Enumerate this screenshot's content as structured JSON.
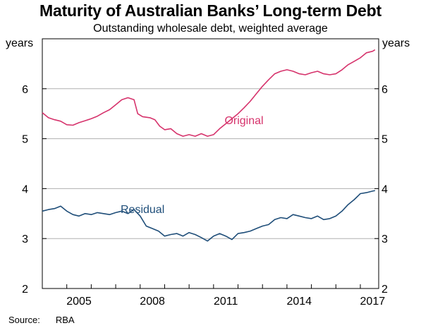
{
  "source": {
    "label": "Source:",
    "value": "RBA"
  },
  "colors": {
    "original": "#d6336c",
    "residual": "#1f4e79",
    "grid": "#b0b0b0",
    "axis": "#000000"
  },
  "chart_data": {
    "type": "line",
    "title": "Maturity of Australian Banks’ Long-term Debt",
    "subtitle": "Outstanding wholesale debt, weighted average",
    "ylabel_left": "years",
    "ylabel_right": "years",
    "xlim": [
      2004.0,
      2017.75
    ],
    "ylim": [
      2,
      7
    ],
    "yticks": [
      2,
      3,
      4,
      5,
      6
    ],
    "xticks": [
      2005,
      2008,
      2011,
      2014,
      2017
    ],
    "grid": true,
    "series": [
      {
        "name": "Original",
        "color": "#d6336c",
        "points": [
          [
            2004.0,
            5.52
          ],
          [
            2004.25,
            5.42
          ],
          [
            2004.5,
            5.38
          ],
          [
            2004.75,
            5.35
          ],
          [
            2005.0,
            5.28
          ],
          [
            2005.25,
            5.27
          ],
          [
            2005.5,
            5.32
          ],
          [
            2005.75,
            5.36
          ],
          [
            2006.0,
            5.4
          ],
          [
            2006.25,
            5.45
          ],
          [
            2006.5,
            5.52
          ],
          [
            2006.75,
            5.58
          ],
          [
            2007.0,
            5.68
          ],
          [
            2007.25,
            5.78
          ],
          [
            2007.5,
            5.82
          ],
          [
            2007.75,
            5.78
          ],
          [
            2007.9,
            5.5
          ],
          [
            2008.1,
            5.44
          ],
          [
            2008.4,
            5.42
          ],
          [
            2008.6,
            5.38
          ],
          [
            2008.8,
            5.25
          ],
          [
            2009.0,
            5.18
          ],
          [
            2009.25,
            5.2
          ],
          [
            2009.5,
            5.1
          ],
          [
            2009.75,
            5.05
          ],
          [
            2010.0,
            5.08
          ],
          [
            2010.25,
            5.05
          ],
          [
            2010.5,
            5.1
          ],
          [
            2010.75,
            5.05
          ],
          [
            2011.0,
            5.08
          ],
          [
            2011.25,
            5.2
          ],
          [
            2011.5,
            5.3
          ],
          [
            2011.75,
            5.4
          ],
          [
            2012.0,
            5.5
          ],
          [
            2012.25,
            5.62
          ],
          [
            2012.5,
            5.75
          ],
          [
            2012.75,
            5.9
          ],
          [
            2013.0,
            6.05
          ],
          [
            2013.25,
            6.18
          ],
          [
            2013.5,
            6.3
          ],
          [
            2013.75,
            6.35
          ],
          [
            2014.0,
            6.38
          ],
          [
            2014.25,
            6.35
          ],
          [
            2014.5,
            6.3
          ],
          [
            2014.75,
            6.28
          ],
          [
            2015.0,
            6.32
          ],
          [
            2015.25,
            6.35
          ],
          [
            2015.5,
            6.3
          ],
          [
            2015.75,
            6.28
          ],
          [
            2016.0,
            6.3
          ],
          [
            2016.25,
            6.38
          ],
          [
            2016.5,
            6.48
          ],
          [
            2016.75,
            6.55
          ],
          [
            2017.0,
            6.62
          ],
          [
            2017.25,
            6.72
          ],
          [
            2017.5,
            6.75
          ],
          [
            2017.6,
            6.78
          ]
        ]
      },
      {
        "name": "Residual",
        "color": "#1f4e79",
        "points": [
          [
            2004.0,
            3.55
          ],
          [
            2004.25,
            3.58
          ],
          [
            2004.5,
            3.6
          ],
          [
            2004.75,
            3.65
          ],
          [
            2005.0,
            3.55
          ],
          [
            2005.25,
            3.48
          ],
          [
            2005.5,
            3.45
          ],
          [
            2005.75,
            3.5
          ],
          [
            2006.0,
            3.48
          ],
          [
            2006.25,
            3.52
          ],
          [
            2006.5,
            3.5
          ],
          [
            2006.75,
            3.48
          ],
          [
            2007.0,
            3.52
          ],
          [
            2007.25,
            3.55
          ],
          [
            2007.5,
            3.5
          ],
          [
            2007.75,
            3.58
          ],
          [
            2008.0,
            3.45
          ],
          [
            2008.25,
            3.25
          ],
          [
            2008.5,
            3.2
          ],
          [
            2008.75,
            3.15
          ],
          [
            2009.0,
            3.05
          ],
          [
            2009.25,
            3.08
          ],
          [
            2009.5,
            3.1
          ],
          [
            2009.75,
            3.05
          ],
          [
            2010.0,
            3.12
          ],
          [
            2010.25,
            3.08
          ],
          [
            2010.5,
            3.02
          ],
          [
            2010.75,
            2.95
          ],
          [
            2011.0,
            3.05
          ],
          [
            2011.25,
            3.1
          ],
          [
            2011.5,
            3.05
          ],
          [
            2011.75,
            2.98
          ],
          [
            2012.0,
            3.1
          ],
          [
            2012.25,
            3.12
          ],
          [
            2012.5,
            3.15
          ],
          [
            2012.75,
            3.2
          ],
          [
            2013.0,
            3.25
          ],
          [
            2013.25,
            3.28
          ],
          [
            2013.5,
            3.38
          ],
          [
            2013.75,
            3.42
          ],
          [
            2014.0,
            3.4
          ],
          [
            2014.25,
            3.48
          ],
          [
            2014.5,
            3.45
          ],
          [
            2014.75,
            3.42
          ],
          [
            2015.0,
            3.4
          ],
          [
            2015.25,
            3.45
          ],
          [
            2015.5,
            3.38
          ],
          [
            2015.75,
            3.4
          ],
          [
            2016.0,
            3.45
          ],
          [
            2016.25,
            3.55
          ],
          [
            2016.5,
            3.68
          ],
          [
            2016.75,
            3.78
          ],
          [
            2017.0,
            3.9
          ],
          [
            2017.25,
            3.92
          ],
          [
            2017.5,
            3.95
          ],
          [
            2017.6,
            3.96
          ]
        ]
      }
    ]
  }
}
